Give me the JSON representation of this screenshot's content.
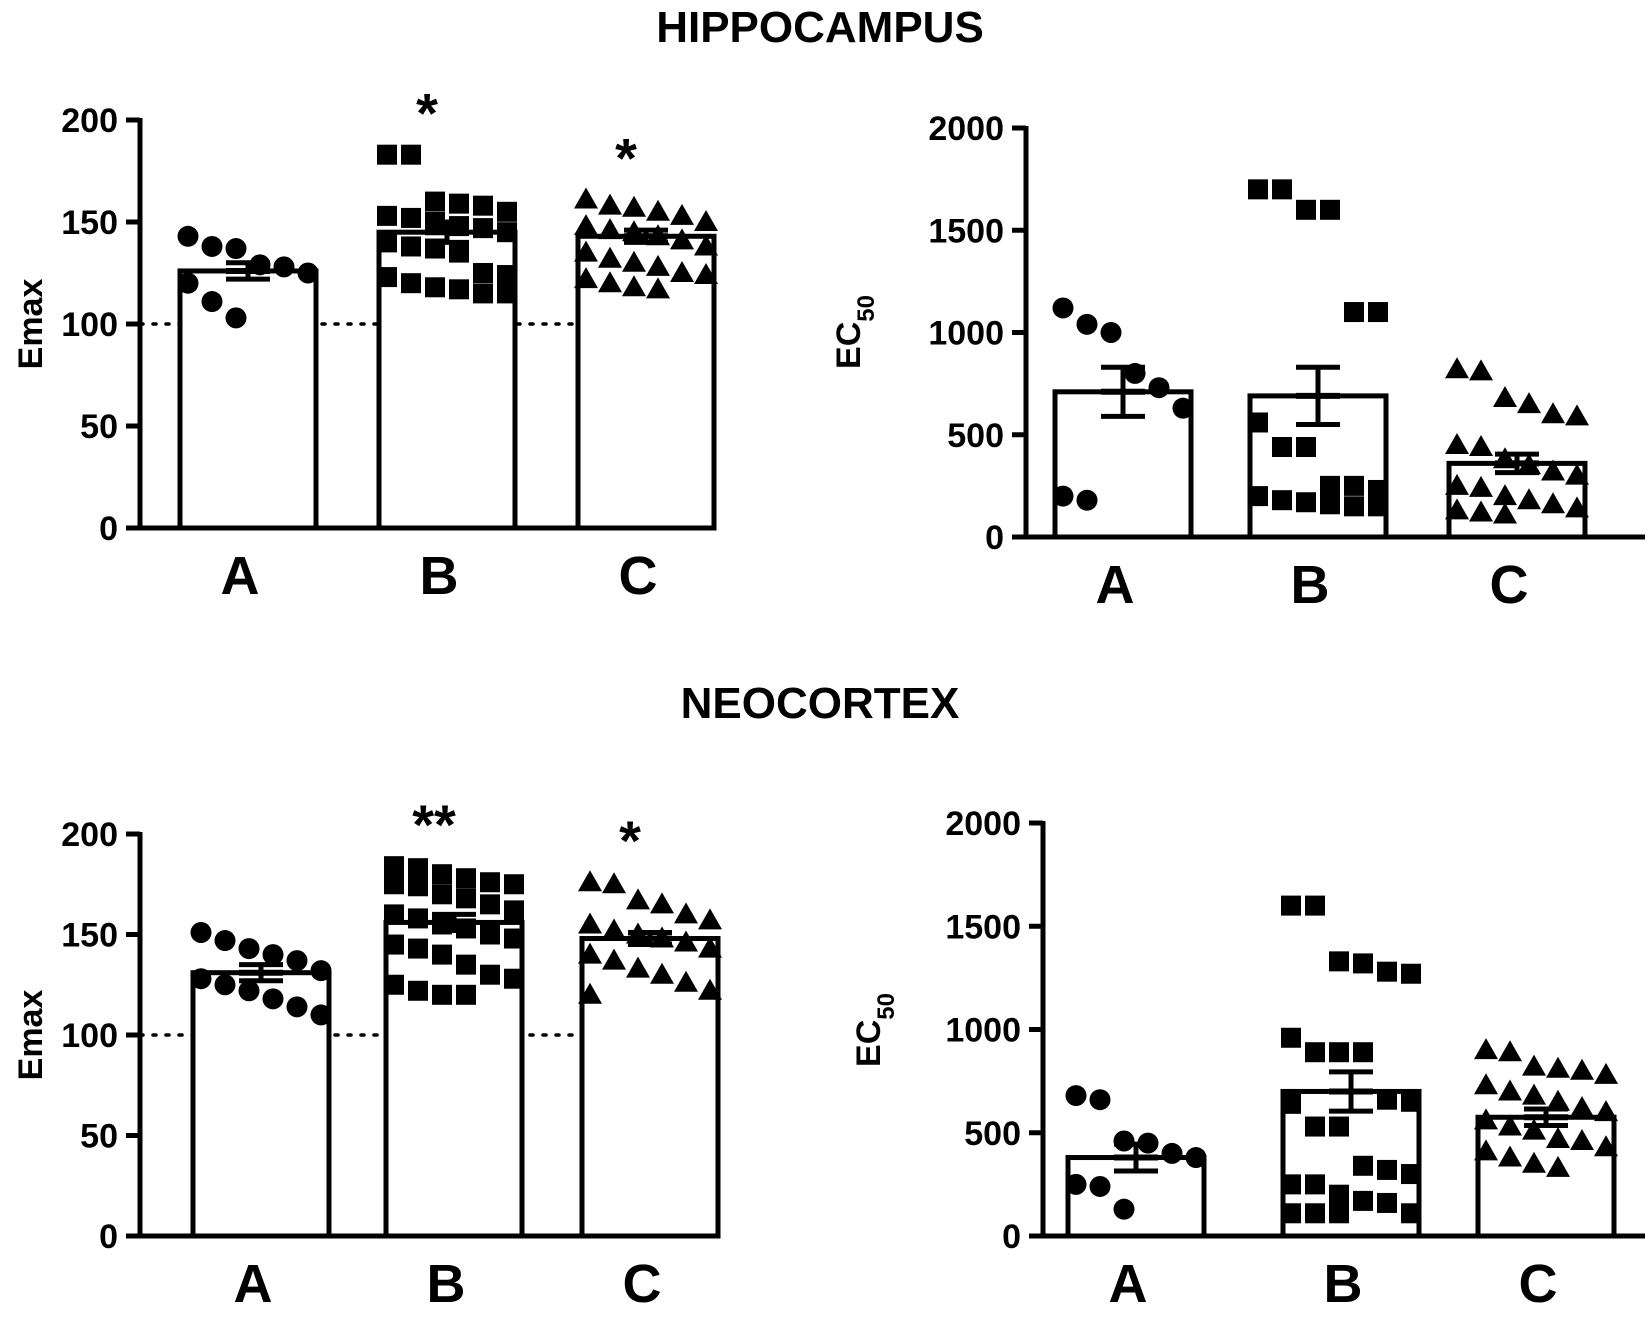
{
  "sections": [
    {
      "title": "HIPPOCAMPUS"
    },
    {
      "title": "NEOCORTEX"
    }
  ],
  "chart_data": [
    {
      "type": "bar",
      "section": "HIPPOCAMPUS",
      "ylabel": "Emax",
      "ylabel_sub": "",
      "categories": [
        "A",
        "B",
        "C"
      ],
      "values": [
        126,
        145,
        143
      ],
      "sem": [
        4,
        5,
        3
      ],
      "ylim": [
        0,
        200
      ],
      "yticks": [
        0,
        50,
        100,
        150,
        200
      ],
      "reference_line": 100,
      "significance": [
        "",
        "*",
        "*"
      ],
      "markers": [
        "circle",
        "square",
        "triangle"
      ],
      "points": [
        [
          143,
          138,
          137,
          129,
          128,
          125,
          120,
          111,
          103
        ],
        [
          183,
          183,
          160,
          159,
          158,
          155,
          153,
          152,
          150,
          148,
          147,
          145,
          140,
          138,
          137,
          135,
          125,
          124,
          123,
          120,
          118,
          117,
          115,
          115
        ],
        [
          161,
          158,
          157,
          155,
          153,
          150,
          148,
          146,
          145,
          143,
          141,
          138,
          135,
          132,
          130,
          128,
          125,
          124,
          122,
          120,
          118,
          117
        ]
      ]
    },
    {
      "type": "bar",
      "section": "HIPPOCAMPUS",
      "ylabel": "EC",
      "ylabel_sub": "50",
      "categories": [
        "A",
        "B",
        "C"
      ],
      "values": [
        710,
        690,
        360
      ],
      "sem": [
        120,
        140,
        45
      ],
      "ylim": [
        0,
        2000
      ],
      "yticks": [
        0,
        500,
        1000,
        1500,
        2000
      ],
      "significance": [
        "",
        "",
        ""
      ],
      "markers": [
        "circle",
        "square",
        "triangle"
      ],
      "points": [
        [
          1120,
          1040,
          1000,
          800,
          730,
          630,
          200,
          180
        ],
        [
          1700,
          1700,
          1600,
          1600,
          1100,
          1100,
          560,
          440,
          440,
          250,
          250,
          230,
          200,
          180,
          170,
          160,
          150,
          150
        ],
        [
          820,
          810,
          680,
          650,
          600,
          590,
          450,
          440,
          380,
          350,
          320,
          300,
          250,
          240,
          200,
          180,
          160,
          140,
          130,
          120,
          110
        ]
      ]
    },
    {
      "type": "bar",
      "section": "NEOCORTEX",
      "ylabel": "Emax",
      "ylabel_sub": "",
      "categories": [
        "A",
        "B",
        "C"
      ],
      "values": [
        131,
        156,
        148
      ],
      "sem": [
        4,
        4,
        3
      ],
      "ylim": [
        0,
        200
      ],
      "yticks": [
        0,
        50,
        100,
        150,
        200
      ],
      "reference_line": 100,
      "significance": [
        "",
        "**",
        "*"
      ],
      "markers": [
        "circle",
        "square",
        "triangle"
      ],
      "points": [
        [
          151,
          147,
          143,
          140,
          137,
          132,
          128,
          125,
          122,
          118,
          114,
          110
        ],
        [
          184,
          183,
          180,
          178,
          176,
          175,
          175,
          174,
          170,
          168,
          165,
          162,
          160,
          158,
          155,
          153,
          150,
          148,
          145,
          143,
          140,
          135,
          130,
          128,
          125,
          122,
          120,
          120
        ],
        [
          176,
          175,
          167,
          165,
          160,
          157,
          155,
          152,
          150,
          148,
          146,
          143,
          140,
          137,
          133,
          130,
          126,
          122,
          120
        ]
      ]
    },
    {
      "type": "bar",
      "section": "NEOCORTEX",
      "ylabel": "EC",
      "ylabel_sub": "50",
      "categories": [
        "A",
        "B",
        "C"
      ],
      "values": [
        380,
        700,
        575
      ],
      "sem": [
        65,
        95,
        40
      ],
      "ylim": [
        0,
        2000
      ],
      "yticks": [
        0,
        500,
        1000,
        1500,
        2000
      ],
      "significance": [
        "",
        "",
        ""
      ],
      "markers": [
        "circle",
        "square",
        "triangle"
      ],
      "points": [
        [
          680,
          660,
          460,
          450,
          400,
          380,
          250,
          240,
          130
        ],
        [
          1600,
          1600,
          1330,
          1320,
          1280,
          1270,
          960,
          890,
          890,
          890,
          660,
          650,
          640,
          530,
          530,
          340,
          320,
          300,
          250,
          250,
          200,
          170,
          160,
          110,
          110,
          110,
          110
        ],
        [
          900,
          890,
          820,
          810,
          800,
          780,
          730,
          700,
          680,
          650,
          620,
          600,
          560,
          530,
          510,
          470,
          460,
          430,
          410,
          380,
          350,
          330
        ]
      ]
    }
  ]
}
